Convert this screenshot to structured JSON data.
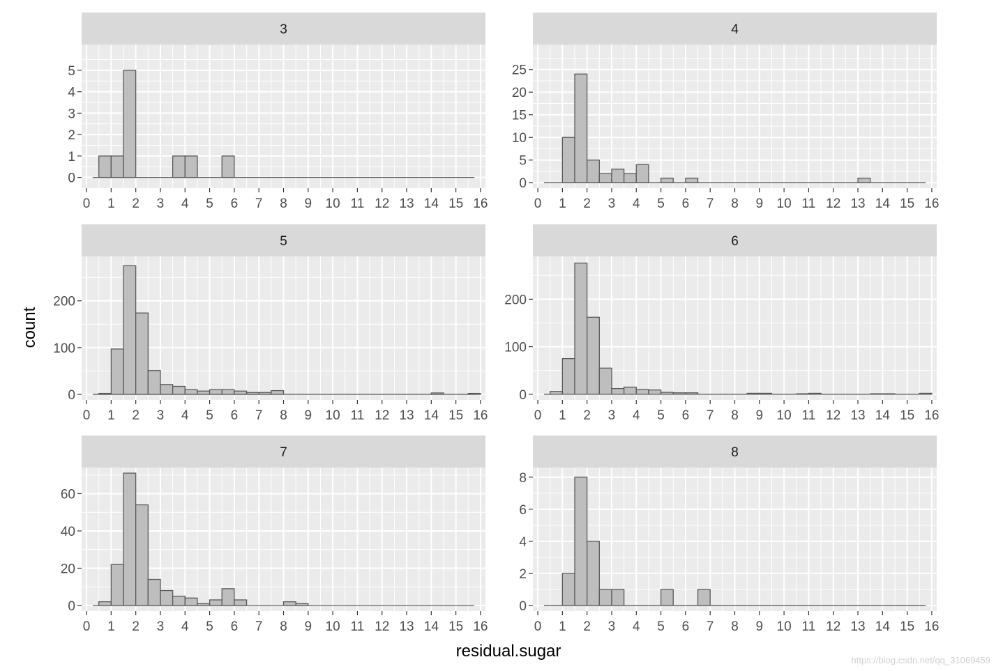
{
  "chart_data": {
    "type": "bar",
    "subtype": "faceted-histogram",
    "xlabel": "residual.sugar",
    "ylabel": "count",
    "xlim": [
      -0.2,
      16.2
    ],
    "x_ticks": [
      "0",
      "1",
      "2",
      "3",
      "4",
      "5",
      "6",
      "7",
      "8",
      "9",
      "10",
      "11",
      "12",
      "13",
      "14",
      "15",
      "16"
    ],
    "bin_width": 0.5,
    "bin_starts": [
      0.5,
      1.0,
      1.5,
      2.0,
      2.5,
      3.0,
      3.5,
      4.0,
      4.5,
      5.0,
      5.5,
      6.0,
      6.5,
      7.0,
      7.5,
      8.0,
      8.5,
      9.0,
      9.5,
      10.0,
      10.5,
      11.0,
      11.5,
      12.0,
      12.5,
      13.0,
      13.5,
      14.0,
      14.5,
      15.0,
      15.5
    ],
    "baseline_range": [
      0.25,
      15.75
    ],
    "grid": true,
    "colors": {
      "panel_bg": "#ebebeb",
      "strip_bg": "#d9d9d9",
      "grid": "#ffffff",
      "bar_fill": "#bebebe",
      "bar_stroke": "#595959"
    },
    "facets": [
      {
        "strip": "3",
        "ylim": [
          -0.5,
          6.2
        ],
        "y_ticks": [
          0,
          1,
          2,
          3,
          4,
          5
        ],
        "values": [
          1,
          1,
          5,
          0,
          0,
          0,
          1,
          1,
          0,
          0,
          1,
          0,
          0,
          0,
          0,
          0,
          0,
          0,
          0,
          0,
          0,
          0,
          0,
          0,
          0,
          0,
          0,
          0,
          0,
          0,
          0
        ]
      },
      {
        "strip": "4",
        "ylim": [
          -1.2,
          30.5
        ],
        "y_ticks": [
          0,
          5,
          10,
          15,
          20,
          25
        ],
        "values": [
          0,
          10,
          24,
          5,
          2,
          3,
          2,
          4,
          0,
          1,
          0,
          1,
          0,
          0,
          0,
          0,
          0,
          0,
          0,
          0,
          0,
          0,
          0,
          0,
          0,
          1,
          0,
          0,
          0,
          0,
          0
        ]
      },
      {
        "strip": "5",
        "ylim": [
          -12,
          295
        ],
        "y_ticks": [
          0,
          100,
          200
        ],
        "values": [
          2,
          97,
          275,
          174,
          51,
          21,
          17,
          10,
          7,
          10,
          10,
          7,
          4,
          4,
          8,
          0,
          0,
          0,
          0,
          0,
          0,
          0,
          0,
          0,
          0,
          0,
          0,
          3,
          0,
          0,
          2
        ]
      },
      {
        "strip": "6",
        "ylim": [
          -12,
          290
        ],
        "y_ticks": [
          0,
          100,
          200
        ],
        "values": [
          6,
          75,
          276,
          162,
          55,
          12,
          15,
          10,
          9,
          4,
          3,
          3,
          0,
          0,
          0,
          0,
          2,
          2,
          0,
          0,
          1,
          2,
          0,
          0,
          0,
          0,
          1,
          1,
          0,
          0,
          2
        ]
      },
      {
        "strip": "7",
        "ylim": [
          -3,
          74
        ],
        "y_ticks": [
          0,
          20,
          40,
          60
        ],
        "values": [
          2,
          22,
          71,
          54,
          14,
          8,
          5,
          4,
          1,
          3,
          9,
          3,
          0,
          0,
          0,
          2,
          1,
          0,
          0,
          0,
          0,
          0,
          0,
          0,
          0,
          0,
          0,
          0,
          0,
          0,
          0
        ]
      },
      {
        "strip": "8",
        "ylim": [
          -0.35,
          8.6
        ],
        "y_ticks": [
          0,
          2,
          4,
          6,
          8
        ],
        "values": [
          0,
          2,
          8,
          4,
          1,
          1,
          0,
          0,
          0,
          1,
          0,
          0,
          1,
          0,
          0,
          0,
          0,
          0,
          0,
          0,
          0,
          0,
          0,
          0,
          0,
          0,
          0,
          0,
          0,
          0,
          0
        ]
      }
    ]
  },
  "watermark": "https://blog.csdn.net/qq_31069459"
}
